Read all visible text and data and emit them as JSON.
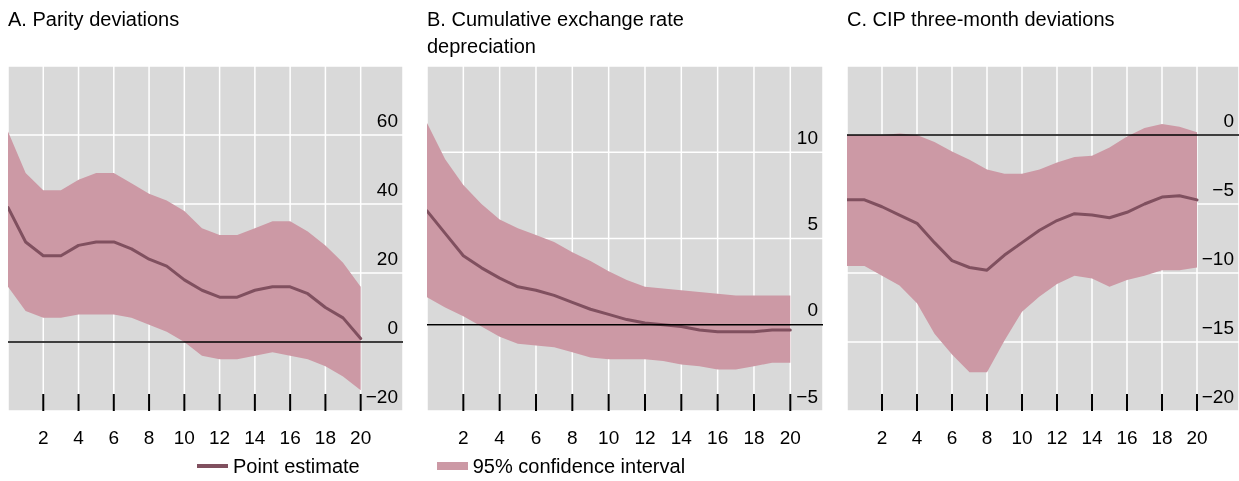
{
  "chart_data": [
    {
      "type": "line",
      "title": "A. Parity deviations",
      "x": [
        0,
        1,
        2,
        3,
        4,
        5,
        6,
        7,
        8,
        9,
        10,
        11,
        12,
        13,
        14,
        15,
        16,
        17,
        18,
        19,
        20
      ],
      "xlim": [
        0,
        22.4
      ],
      "xticks": [
        2,
        4,
        6,
        8,
        10,
        12,
        14,
        16,
        18,
        20
      ],
      "ylim": [
        -20,
        80
      ],
      "yticks": [
        {
          "value": -20,
          "label": "−20"
        },
        0,
        20,
        40,
        60
      ],
      "grid": true,
      "legend": "bottom",
      "annotations": [
        "95% confidence interval"
      ],
      "ref_lines": [
        {
          "axis": "y",
          "value": 0,
          "color": "#000000"
        }
      ],
      "series": [
        {
          "name": "Point estimate",
          "color": "#80505f",
          "values": [
            39,
            29,
            25,
            25,
            28,
            29,
            29,
            27,
            24,
            22,
            18,
            15,
            13,
            13,
            15,
            16,
            16,
            14,
            10,
            7,
            1
          ],
          "lower": [
            16,
            9,
            7,
            7,
            8,
            8,
            8,
            7,
            5,
            3,
            0,
            -4,
            -5,
            -5,
            -4,
            -3,
            -4,
            -5,
            -7,
            -10,
            -14
          ],
          "upper": [
            61,
            49,
            44,
            44,
            47,
            49,
            49,
            46,
            43,
            41,
            38,
            33,
            31,
            31,
            33,
            35,
            35,
            32,
            28,
            23,
            16
          ]
        }
      ]
    },
    {
      "type": "line",
      "title": "B. Cumulative exchange rate depreciation",
      "x": [
        0,
        1,
        2,
        3,
        4,
        5,
        6,
        7,
        8,
        9,
        10,
        11,
        12,
        13,
        14,
        15,
        16,
        17,
        18,
        19,
        20
      ],
      "xlim": [
        0,
        21.8
      ],
      "xticks": [
        2,
        4,
        6,
        8,
        10,
        12,
        14,
        16,
        18,
        20
      ],
      "ylim": [
        -5,
        15
      ],
      "yticks": [
        {
          "value": -5,
          "label": "−5"
        },
        0,
        5,
        10
      ],
      "grid": true,
      "ref_lines": [
        {
          "axis": "y",
          "value": 0,
          "color": "#000000"
        }
      ],
      "series": [
        {
          "color": "#80505f",
          "values": [
            6.6,
            5.3,
            4.0,
            3.3,
            2.7,
            2.2,
            2.0,
            1.7,
            1.3,
            0.9,
            0.6,
            0.3,
            0.1,
            0.0,
            -0.1,
            -0.3,
            -0.4,
            -0.4,
            -0.4,
            -0.3,
            -0.3
          ],
          "lower": [
            1.6,
            1.0,
            0.5,
            -0.1,
            -0.7,
            -1.1,
            -1.2,
            -1.3,
            -1.6,
            -1.9,
            -2.0,
            -2.0,
            -2.0,
            -2.1,
            -2.3,
            -2.4,
            -2.6,
            -2.6,
            -2.4,
            -2.2,
            -2.2
          ],
          "upper": [
            11.7,
            9.6,
            8.1,
            7.0,
            6.1,
            5.6,
            5.2,
            4.8,
            4.2,
            3.7,
            3.1,
            2.6,
            2.2,
            2.1,
            2.0,
            1.9,
            1.8,
            1.7,
            1.7,
            1.7,
            1.7
          ]
        }
      ]
    },
    {
      "type": "line",
      "title": "C. CIP three-month deviations",
      "x": [
        0,
        1,
        2,
        3,
        4,
        5,
        6,
        7,
        8,
        9,
        10,
        11,
        12,
        13,
        14,
        15,
        16,
        17,
        18,
        19,
        20
      ],
      "xlim": [
        0,
        22.4
      ],
      "xticks": [
        2,
        4,
        6,
        8,
        10,
        12,
        14,
        16,
        18,
        20
      ],
      "ylim": [
        -20,
        5
      ],
      "yticks": [
        {
          "value": -20,
          "label": "−20"
        },
        {
          "value": -15,
          "label": "−15"
        },
        {
          "value": -10,
          "label": "−10"
        },
        {
          "value": -5,
          "label": "−5"
        },
        0
      ],
      "grid": true,
      "ref_lines": [
        {
          "axis": "y",
          "value": 0,
          "color": "#000000"
        }
      ],
      "series": [
        {
          "color": "#80505f",
          "values": [
            -4.7,
            -4.7,
            -5.2,
            -5.8,
            -6.4,
            -7.8,
            -9.1,
            -9.6,
            -9.8,
            -8.7,
            -7.8,
            -6.9,
            -6.2,
            -5.7,
            -5.8,
            -6.0,
            -5.6,
            -5.0,
            -4.5,
            -4.4,
            -4.7
          ],
          "lower": [
            -9.5,
            -9.5,
            -10.2,
            -10.9,
            -12.2,
            -14.4,
            -15.9,
            -17.2,
            -17.2,
            -14.9,
            -12.8,
            -11.7,
            -10.8,
            -10.2,
            -10.4,
            -11.0,
            -10.5,
            -10.2,
            -9.8,
            -9.8,
            -9.6
          ],
          "upper": [
            0.0,
            0.0,
            0.0,
            0.1,
            0.0,
            -0.5,
            -1.2,
            -1.8,
            -2.5,
            -2.8,
            -2.8,
            -2.5,
            -2.0,
            -1.6,
            -1.5,
            -0.9,
            -0.1,
            0.5,
            0.8,
            0.6,
            0.2
          ]
        }
      ]
    }
  ]
}
